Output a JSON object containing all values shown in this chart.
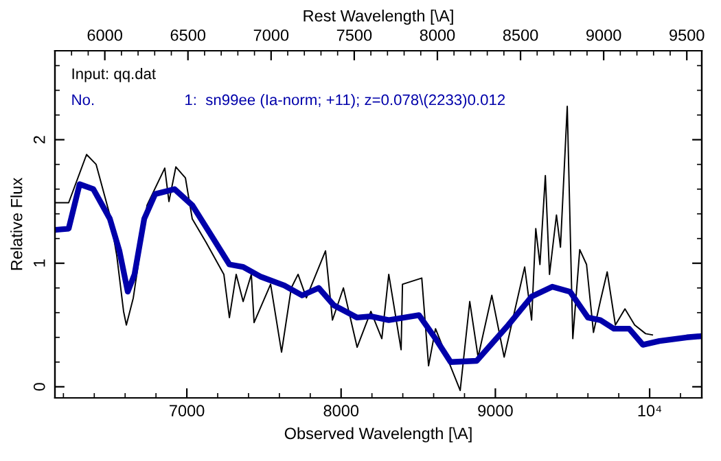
{
  "chart_data": {
    "type": "line",
    "xlabel": "Observed Wavelength [\\A]",
    "ylabel": "Relative Flux",
    "x2label": "Rest Wavelength [\\A]",
    "annotations": [
      "Input: qq.dat",
      "No.",
      "1:  sn99ee (Ia-norm; +11); z=0.078\\(2233)0.012"
    ],
    "xlim": [
      6145,
      10338
    ],
    "xticks": [
      7000,
      8000,
      9000,
      {
        "value": 10000,
        "label": "10⁴"
      }
    ],
    "x2lim": [
      5700,
      9590
    ],
    "x2ticks": [
      6000,
      6500,
      7000,
      7500,
      8000,
      8500,
      9000,
      9500
    ],
    "ylim": [
      -0.09,
      2.72
    ],
    "yticks": [
      0,
      1,
      2
    ],
    "grid": false,
    "legend": false,
    "marker": "none",
    "line_style": "solid",
    "series": [
      {
        "color": "#000000",
        "x": [
          6145,
          6234,
          6350,
          6412,
          6501,
          6546,
          6590,
          6608,
          6653,
          6742,
          6857,
          6884,
          6929,
          6991,
          7035,
          7124,
          7240,
          7276,
          7320,
          7365,
          7418,
          7436,
          7543,
          7614,
          7677,
          7721,
          7775,
          7899,
          7944,
          8015,
          8104,
          8193,
          8264,
          8309,
          8389,
          8398,
          8523,
          8567,
          8612,
          8772,
          8834,
          8888,
          8977,
          9057,
          9190,
          9235,
          9262,
          9289,
          9324,
          9351,
          9396,
          9422,
          9466,
          9502,
          9547,
          9591,
          9636,
          9680,
          9725,
          9778,
          9840,
          9903,
          9974,
          10018
        ],
        "values": [
          1.49,
          1.49,
          1.88,
          1.8,
          1.39,
          1.06,
          0.61,
          0.5,
          0.72,
          1.47,
          1.77,
          1.5,
          1.78,
          1.69,
          1.36,
          1.17,
          0.91,
          0.56,
          0.91,
          0.69,
          0.91,
          0.52,
          0.83,
          0.28,
          0.8,
          0.91,
          0.72,
          1.1,
          0.54,
          0.8,
          0.32,
          0.61,
          0.39,
          0.91,
          0.3,
          0.83,
          0.88,
          0.17,
          0.47,
          -0.03,
          0.69,
          0.24,
          0.74,
          0.24,
          0.97,
          0.54,
          1.28,
          0.99,
          1.71,
          0.91,
          1.39,
          1.13,
          2.27,
          0.39,
          1.11,
          0.99,
          0.44,
          0.69,
          0.93,
          0.5,
          0.63,
          0.5,
          0.43,
          0.42
        ]
      },
      {
        "color": "#0000aa",
        "x": [
          6145,
          6234,
          6305,
          6394,
          6501,
          6563,
          6617,
          6661,
          6724,
          6795,
          6920,
          7035,
          7151,
          7276,
          7365,
          7481,
          7632,
          7748,
          7855,
          7953,
          8104,
          8193,
          8309,
          8505,
          8612,
          8710,
          8879,
          9084,
          9235,
          9369,
          9484,
          9600,
          9680,
          9769,
          9867,
          9956,
          10063,
          10241,
          10338
        ],
        "values": [
          1.27,
          1.28,
          1.64,
          1.6,
          1.36,
          1.1,
          0.77,
          0.91,
          1.36,
          1.56,
          1.6,
          1.47,
          1.24,
          0.99,
          0.97,
          0.89,
          0.82,
          0.74,
          0.8,
          0.66,
          0.56,
          0.57,
          0.54,
          0.58,
          0.39,
          0.2,
          0.21,
          0.5,
          0.73,
          0.81,
          0.77,
          0.56,
          0.54,
          0.47,
          0.47,
          0.34,
          0.37,
          0.4,
          0.41
        ]
      }
    ]
  }
}
